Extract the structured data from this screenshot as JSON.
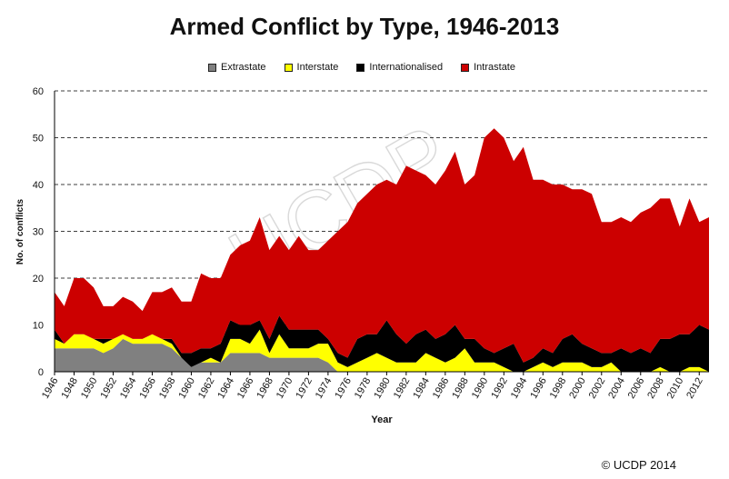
{
  "chart_data": {
    "type": "area",
    "stacked": true,
    "title": "Armed Conflict by Type, 1946-2013",
    "xlabel": "Year",
    "ylabel": "No. of conflicts",
    "ylim": [
      0,
      60
    ],
    "yticks": [
      "0",
      "10",
      "20",
      "30",
      "40",
      "50",
      "60"
    ],
    "xticks": [
      "1946",
      "1948",
      "1950",
      "1952",
      "1954",
      "1956",
      "1958",
      "1960",
      "1962",
      "1964",
      "1966",
      "1968",
      "1970",
      "1972",
      "1974",
      "1976",
      "1978",
      "1980",
      "1982",
      "1984",
      "1986",
      "1988",
      "1990",
      "1992",
      "1994",
      "1996",
      "1998",
      "2000",
      "2002",
      "2004",
      "2006",
      "2008",
      "2010",
      "2012"
    ],
    "grid": "horizontal dashed",
    "legend_position": "top",
    "x": [
      1946,
      1947,
      1948,
      1949,
      1950,
      1951,
      1952,
      1953,
      1954,
      1955,
      1956,
      1957,
      1958,
      1959,
      1960,
      1961,
      1962,
      1963,
      1964,
      1965,
      1966,
      1967,
      1968,
      1969,
      1970,
      1971,
      1972,
      1973,
      1974,
      1975,
      1976,
      1977,
      1978,
      1979,
      1980,
      1981,
      1982,
      1983,
      1984,
      1985,
      1986,
      1987,
      1988,
      1989,
      1990,
      1991,
      1992,
      1993,
      1994,
      1995,
      1996,
      1997,
      1998,
      1999,
      2000,
      2001,
      2002,
      2003,
      2004,
      2005,
      2006,
      2007,
      2008,
      2009,
      2010,
      2011,
      2012,
      2013
    ],
    "series": [
      {
        "name": "Extrastate",
        "color": "#808080",
        "values": [
          5,
          5,
          5,
          5,
          5,
          4,
          5,
          7,
          6,
          6,
          6,
          6,
          5,
          3,
          1,
          2,
          2,
          2,
          4,
          4,
          4,
          4,
          3,
          3,
          3,
          3,
          3,
          3,
          2,
          0,
          0,
          0,
          0,
          0,
          0,
          0,
          0,
          0,
          0,
          0,
          0,
          0,
          0,
          0,
          0,
          0,
          0,
          0,
          0,
          0,
          0,
          0,
          0,
          0,
          0,
          0,
          0,
          0,
          0,
          0,
          0,
          0,
          0,
          0,
          0,
          0,
          0,
          0
        ]
      },
      {
        "name": "Interstate",
        "color": "#ffff00",
        "values": [
          2,
          1,
          3,
          3,
          2,
          2,
          2,
          1,
          1,
          1,
          2,
          1,
          1,
          0,
          0,
          0,
          1,
          0,
          3,
          3,
          2,
          5,
          1,
          5,
          2,
          2,
          2,
          3,
          4,
          2,
          1,
          2,
          3,
          4,
          3,
          2,
          2,
          2,
          4,
          3,
          2,
          3,
          5,
          2,
          2,
          2,
          1,
          0,
          0,
          1,
          2,
          1,
          2,
          2,
          2,
          1,
          1,
          2,
          0,
          0,
          0,
          0,
          1,
          0,
          0,
          1,
          1,
          0
        ]
      },
      {
        "name": "Internationalised",
        "color": "#000000",
        "values": [
          2,
          0,
          0,
          0,
          0,
          1,
          0,
          0,
          0,
          0,
          0,
          0,
          1,
          1,
          3,
          3,
          2,
          4,
          4,
          3,
          4,
          2,
          3,
          4,
          4,
          4,
          4,
          3,
          1,
          2,
          2,
          5,
          5,
          4,
          8,
          6,
          4,
          6,
          5,
          4,
          6,
          7,
          2,
          5,
          3,
          2,
          4,
          6,
          2,
          2,
          3,
          3,
          5,
          6,
          4,
          4,
          3,
          2,
          5,
          4,
          5,
          4,
          6,
          7,
          8,
          7,
          9,
          9
        ]
      },
      {
        "name": "Intrastate",
        "color": "#cc0000",
        "values": [
          8,
          8,
          12,
          12,
          11,
          7,
          7,
          8,
          8,
          6,
          9,
          10,
          11,
          11,
          11,
          16,
          15,
          14,
          14,
          17,
          18,
          22,
          19,
          17,
          17,
          20,
          17,
          17,
          21,
          26,
          29,
          29,
          30,
          32,
          30,
          32,
          38,
          35,
          33,
          33,
          35,
          37,
          33,
          35,
          45,
          48,
          45,
          39,
          46,
          38,
          36,
          36,
          33,
          31,
          33,
          33,
          28,
          28,
          28,
          28,
          29,
          31,
          30,
          30,
          23,
          29,
          22,
          24
        ]
      }
    ]
  },
  "watermark": "UCDP",
  "credit": "© UCDP 2014"
}
